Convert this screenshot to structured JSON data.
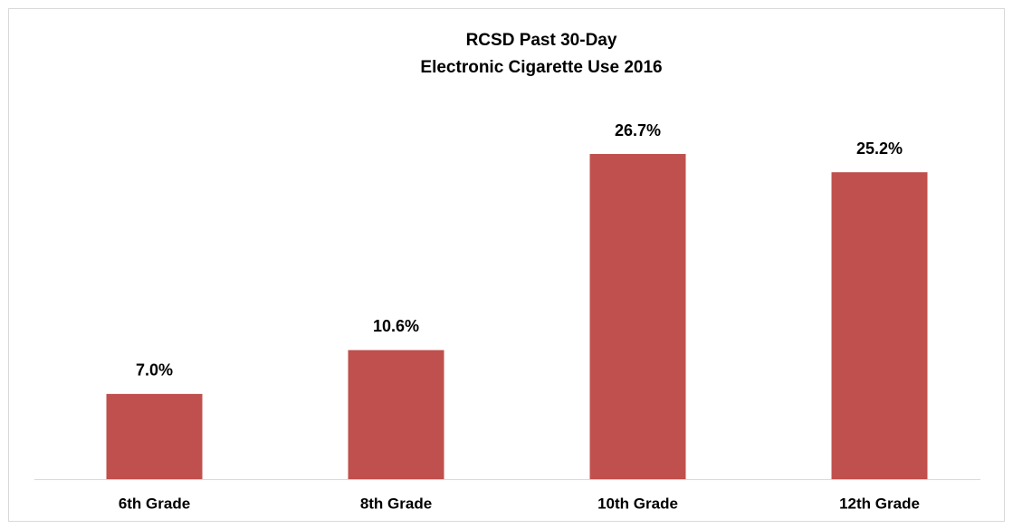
{
  "chart_data": {
    "type": "bar",
    "title": [
      "RCSD Past 30-Day",
      "Electronic Cigarette Use 2016"
    ],
    "categories": [
      "6th Grade",
      "8th Grade",
      "10th Grade",
      "12th Grade"
    ],
    "values": [
      7.0,
      10.6,
      26.7,
      25.2
    ],
    "value_labels": [
      "7.0%",
      "10.6%",
      "26.7%",
      "25.2%"
    ],
    "color": "#c0504d"
  }
}
